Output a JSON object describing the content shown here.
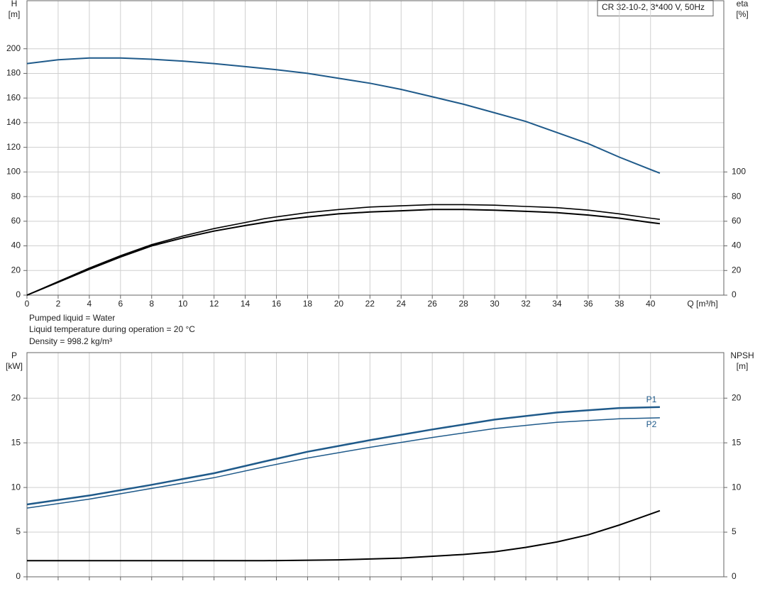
{
  "model": "CR 32-10-2, 3*400 V, 50Hz",
  "info": [
    "Pumped liquid = Water",
    "Liquid temperature during operation = 20 °C",
    "Density = 998.2 kg/m³"
  ],
  "chart_data": [
    {
      "type": "line",
      "y_label": "H",
      "y_unit": "[m]",
      "y2_label": "eta",
      "y2_unit": "[%]",
      "x_label": "Q [m³/h]",
      "xlim": [
        0,
        44.7
      ],
      "xticks": [
        0,
        2,
        4,
        6,
        8,
        10,
        12,
        14,
        16,
        18,
        20,
        22,
        24,
        26,
        28,
        30,
        32,
        34,
        36,
        38,
        40
      ],
      "ylim": [
        0,
        239
      ],
      "yticks": [
        0,
        20,
        40,
        60,
        80,
        100,
        120,
        140,
        160,
        180,
        200
      ],
      "y2lim": [
        0,
        239
      ],
      "y2ticks": [
        0,
        20,
        40,
        60,
        80,
        100
      ],
      "grid": true,
      "xtick_labels": true,
      "series": [
        {
          "color": "#1f5a8a",
          "width": 2,
          "x": [
            0,
            2,
            4,
            6,
            8,
            10,
            12,
            14,
            15.2,
            16,
            18,
            20,
            22,
            24,
            26,
            28,
            30,
            32,
            34,
            36,
            38,
            40,
            40.6
          ],
          "values": [
            188,
            191,
            192.5,
            192.5,
            191.5,
            190,
            188,
            185.5,
            184,
            183,
            180,
            176,
            172,
            167,
            161,
            155,
            148,
            141,
            132,
            123,
            112,
            102,
            99
          ]
        },
        {
          "color": "#000000",
          "width": 1.6,
          "axis": "y2",
          "x": [
            0,
            2,
            4,
            6,
            8,
            10,
            12,
            14,
            15.2,
            16,
            18,
            20,
            22,
            24,
            26,
            28,
            30,
            32,
            34,
            36,
            38,
            40,
            40.6
          ],
          "values": [
            0,
            11,
            22,
            32,
            41,
            48,
            54,
            59,
            62,
            63.5,
            67,
            69.5,
            71.5,
            72.5,
            73.5,
            73.5,
            73,
            72,
            71,
            69,
            66,
            62.5,
            61.5
          ]
        },
        {
          "color": "#000000",
          "width": 2,
          "axis": "y2",
          "x": [
            0,
            2,
            4,
            6,
            8,
            10,
            12,
            14,
            15.2,
            16,
            18,
            20,
            22,
            24,
            26,
            28,
            30,
            32,
            34,
            36,
            38,
            40,
            40.6
          ],
          "values": [
            0,
            10.5,
            21,
            31,
            40,
            46.5,
            52,
            56.5,
            59,
            60.5,
            63.5,
            66,
            67.5,
            68.5,
            69.5,
            69.5,
            69,
            68,
            67,
            65,
            62.5,
            59,
            58
          ]
        }
      ]
    },
    {
      "type": "line",
      "y_label": "P",
      "y_unit": "[kW]",
      "y2_label": "NPSH",
      "y2_unit": "[m]",
      "xlim": [
        0,
        44.7
      ],
      "xticks": [
        0,
        2,
        4,
        6,
        8,
        10,
        12,
        14,
        16,
        18,
        20,
        22,
        24,
        26,
        28,
        30,
        32,
        34,
        36,
        38,
        40
      ],
      "ylim": [
        0,
        25.1
      ],
      "yticks": [
        0,
        5,
        10,
        15,
        20
      ],
      "y2lim": [
        0,
        25.1
      ],
      "y2ticks": [
        0,
        5,
        10,
        15,
        20
      ],
      "grid": true,
      "xtick_labels": false,
      "series": [
        {
          "name": "P1",
          "color": "#1f5a8a",
          "width": 2.5,
          "x": [
            0,
            4,
            8,
            12,
            15.2,
            18,
            22,
            26,
            30,
            34,
            38,
            40.6
          ],
          "values": [
            8.1,
            9.1,
            10.3,
            11.6,
            12.9,
            14,
            15.3,
            16.5,
            17.6,
            18.4,
            18.9,
            19.0
          ]
        },
        {
          "name": "P2",
          "color": "#1f5a8a",
          "width": 1.5,
          "x": [
            0,
            4,
            8,
            12,
            15.2,
            18,
            22,
            26,
            30,
            34,
            38,
            40.6
          ],
          "values": [
            7.7,
            8.7,
            9.9,
            11.1,
            12.3,
            13.3,
            14.5,
            15.6,
            16.6,
            17.3,
            17.7,
            17.8
          ]
        },
        {
          "color": "#000000",
          "width": 2,
          "axis": "y2",
          "x": [
            0,
            15.2,
            20,
            24,
            28,
            30,
            32,
            34,
            36,
            38,
            40.6
          ],
          "values": [
            1.8,
            1.8,
            1.9,
            2.1,
            2.5,
            2.8,
            3.3,
            3.9,
            4.7,
            5.8,
            7.4
          ]
        }
      ]
    }
  ]
}
